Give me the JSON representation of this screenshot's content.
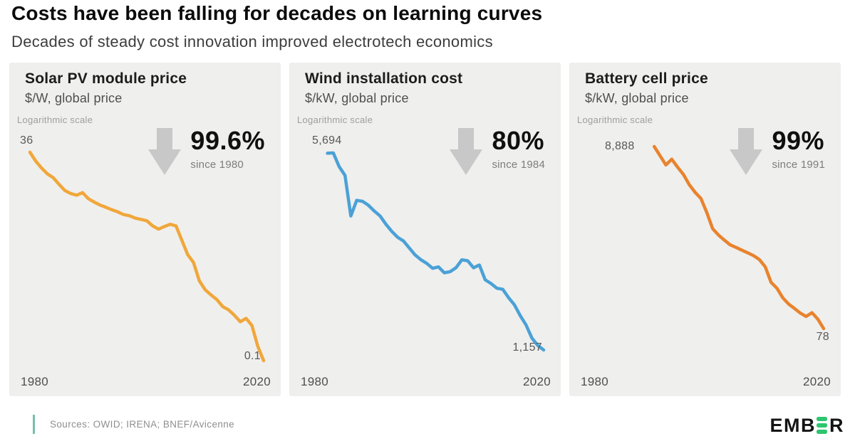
{
  "header": {
    "title": "Costs have been falling for decades on learning curves",
    "subtitle": "Decades of steady cost innovation improved electrotech economics"
  },
  "panels": [
    {
      "title": "Solar PV module price",
      "unit": "$/W, global price",
      "scale_note": "Logarithmic scale",
      "start_label": "36",
      "end_label": "0.1",
      "pct": "99.6%",
      "since": "since 1980",
      "x_left": "1980",
      "x_right": "2020",
      "line_color": "#f0a73a"
    },
    {
      "title": "Wind installation cost",
      "unit": "$/kW, global price",
      "scale_note": "Logarithmic scale",
      "start_label": "5,694",
      "end_label": "1,157",
      "pct": "80%",
      "since": "since 1984",
      "x_left": "1980",
      "x_right": "2020",
      "line_color": "#4ba1d6"
    },
    {
      "title": "Battery cell price",
      "unit": "$/kW, global price",
      "scale_note": "Logarithmic scale",
      "start_label": "8,888",
      "end_label": "78",
      "pct": "99%",
      "since": "since 1991",
      "x_left": "1980",
      "x_right": "2020",
      "line_color": "#e8832e"
    }
  ],
  "chart_data": [
    {
      "type": "line",
      "title": "Solar PV module price",
      "ylabel": "$/W, global price",
      "yscale": "logarithmic",
      "color": "#f0a73a",
      "x_range": [
        1980,
        2020
      ],
      "x_axis_labels": [
        "1980",
        "2020"
      ],
      "start_value": 36,
      "end_value": 0.1,
      "decline_pct": "99.6%",
      "decline_since": 1980,
      "series": [
        {
          "name": "Solar PV module price ($/W)",
          "x": [
            1980,
            1981,
            1982,
            1983,
            1984,
            1985,
            1986,
            1987,
            1988,
            1989,
            1990,
            1991,
            1992,
            1993,
            1994,
            1995,
            1996,
            1997,
            1998,
            1999,
            2000,
            2001,
            2002,
            2003,
            2004,
            2005,
            2006,
            2007,
            2008,
            2009,
            2010,
            2011,
            2012,
            2013,
            2014,
            2015,
            2016,
            2017,
            2018,
            2019,
            2020
          ],
          "y": [
            36,
            28,
            23,
            19.5,
            17.5,
            14.5,
            12.2,
            11.2,
            10.7,
            11.5,
            9.7,
            8.8,
            8.1,
            7.6,
            7.1,
            6.7,
            6.2,
            6.0,
            5.6,
            5.4,
            5.2,
            4.5,
            4.1,
            4.4,
            4.7,
            4.5,
            3.0,
            2.0,
            1.6,
            0.95,
            0.74,
            0.64,
            0.56,
            0.46,
            0.42,
            0.36,
            0.3,
            0.33,
            0.27,
            0.15,
            0.1
          ]
        }
      ]
    },
    {
      "type": "line",
      "title": "Wind installation cost",
      "ylabel": "$/kW, global price",
      "yscale": "logarithmic",
      "color": "#4ba1d6",
      "x_range": [
        1980,
        2020
      ],
      "x_axis_labels": [
        "1980",
        "2020"
      ],
      "start_value": 5694,
      "end_value": 1157,
      "decline_pct": "80%",
      "decline_since": 1984,
      "series": [
        {
          "name": "Wind installation cost ($/kW)",
          "x": [
            1983,
            1984,
            1985,
            1986,
            1987,
            1988,
            1989,
            1990,
            1991,
            1992,
            1993,
            1994,
            1995,
            1996,
            1997,
            1998,
            1999,
            2000,
            2001,
            2002,
            2003,
            2004,
            2005,
            2006,
            2007,
            2008,
            2009,
            2010,
            2011,
            2012,
            2013,
            2014,
            2015,
            2016,
            2017,
            2018,
            2019,
            2020
          ],
          "y": [
            5680,
            5694,
            5100,
            4750,
            3420,
            3880,
            3850,
            3730,
            3560,
            3420,
            3200,
            3020,
            2880,
            2795,
            2640,
            2495,
            2400,
            2330,
            2240,
            2265,
            2160,
            2180,
            2250,
            2400,
            2380,
            2250,
            2300,
            2040,
            1980,
            1906,
            1890,
            1766,
            1666,
            1527,
            1415,
            1273,
            1200,
            1157
          ]
        }
      ]
    },
    {
      "type": "line",
      "title": "Battery cell price",
      "ylabel": "$/kW, global price",
      "yscale": "logarithmic",
      "color": "#e8832e",
      "x_range": [
        1980,
        2020
      ],
      "x_axis_labels": [
        "1980",
        "2020"
      ],
      "start_value": 8888,
      "end_value": 78,
      "decline_pct": "99%",
      "decline_since": 1991,
      "series": [
        {
          "name": "Battery cell price ($/kW)",
          "x": [
            1991,
            1992,
            1993,
            1994,
            1995,
            1996,
            1997,
            1998,
            1999,
            2000,
            2001,
            2002,
            2003,
            2004,
            2005,
            2006,
            2007,
            2008,
            2009,
            2010,
            2011,
            2012,
            2013,
            2014,
            2015,
            2016,
            2017,
            2018,
            2019,
            2020
          ],
          "y": [
            8888,
            7000,
            5500,
            6400,
            5200,
            4300,
            3300,
            2700,
            2300,
            1600,
            1050,
            890,
            780,
            690,
            645,
            600,
            560,
            520,
            470,
            390,
            260,
            223,
            174,
            148,
            132,
            117,
            107,
            118,
            100,
            78
          ]
        }
      ]
    }
  ],
  "footer": {
    "sources": "Sources: OWID; IRENA; BNEF/Avicenne",
    "logo_text": "EMBER",
    "logo_prefix": "EMB",
    "logo_suffix": "R",
    "accent_bar_color": "#74c0ae",
    "logo_green": "#2ec56f"
  }
}
